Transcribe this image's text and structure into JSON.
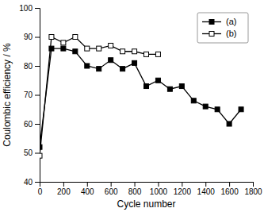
{
  "chart_data": {
    "type": "line",
    "x_label": "Cycle number",
    "y_label": "Coulombic efficiency / %",
    "series": [
      {
        "name": "(a)",
        "color": "black",
        "marker": "square",
        "x": [
          0,
          100,
          200,
          300,
          400,
          500,
          600,
          700,
          800,
          900,
          1000,
          1100,
          1200,
          1300,
          1400,
          1500,
          1600,
          1700
        ],
        "values": [
          52,
          86,
          86,
          85,
          80,
          79,
          82,
          79,
          81,
          73,
          75,
          72,
          73,
          68,
          66,
          65,
          60,
          65
        ]
      },
      {
        "name": "(b)",
        "color": "black",
        "marker": "square-open",
        "x": [
          0,
          100,
          200,
          300,
          400,
          500,
          600,
          700,
          800,
          900,
          1000
        ],
        "values": [
          49,
          90,
          88,
          90,
          86,
          86,
          87,
          85,
          85,
          84,
          84
        ]
      }
    ],
    "xlim": [
      0,
      1800
    ],
    "ylim": [
      40,
      100
    ],
    "xticks": [
      0,
      200,
      400,
      600,
      800,
      1000,
      1200,
      1400,
      1600,
      1800
    ],
    "yticks": [
      40,
      50,
      60,
      70,
      80,
      90,
      100
    ],
    "legend": "upper right",
    "grid": false
  }
}
